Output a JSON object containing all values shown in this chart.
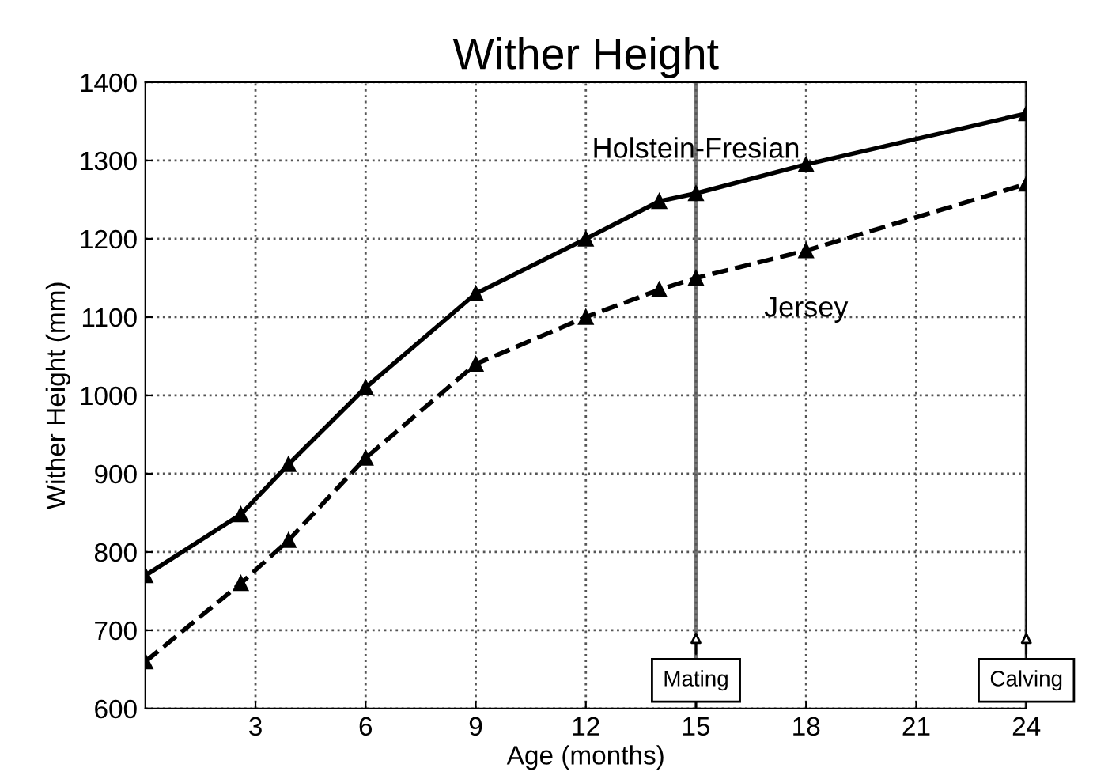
{
  "chart_data": {
    "type": "line",
    "title": "Wither Height",
    "xlabel": "Age (months)",
    "ylabel": "Wither Height (mm)",
    "xlim": [
      0,
      24
    ],
    "xticks": [
      3,
      6,
      9,
      12,
      15,
      18,
      21,
      24
    ],
    "ylim": [
      600,
      1400
    ],
    "yticks": [
      600,
      700,
      800,
      900,
      1000,
      1100,
      1200,
      1300,
      1400
    ],
    "grid": true,
    "marker": "triangle",
    "series": [
      {
        "name": "Holstein-Fresian",
        "color": "#000000",
        "line_style": "solid",
        "x": [
          0,
          2.6,
          3.9,
          6,
          9,
          12,
          14,
          15,
          18,
          24
        ],
        "values": [
          770,
          848,
          912,
          1010,
          1130,
          1200,
          1248,
          1258,
          1295,
          1360
        ]
      },
      {
        "name": "Jersey",
        "color": "#000000",
        "line_style": "dashed",
        "x": [
          0,
          2.6,
          3.9,
          6,
          9,
          12,
          14,
          15,
          18,
          24
        ],
        "values": [
          660,
          760,
          815,
          920,
          1040,
          1100,
          1135,
          1150,
          1185,
          1270
        ]
      }
    ],
    "ref_lines": [
      {
        "axis": "x",
        "value": 15,
        "label": "Mating"
      },
      {
        "axis": "x",
        "value": 24,
        "label": "Calving"
      }
    ]
  }
}
